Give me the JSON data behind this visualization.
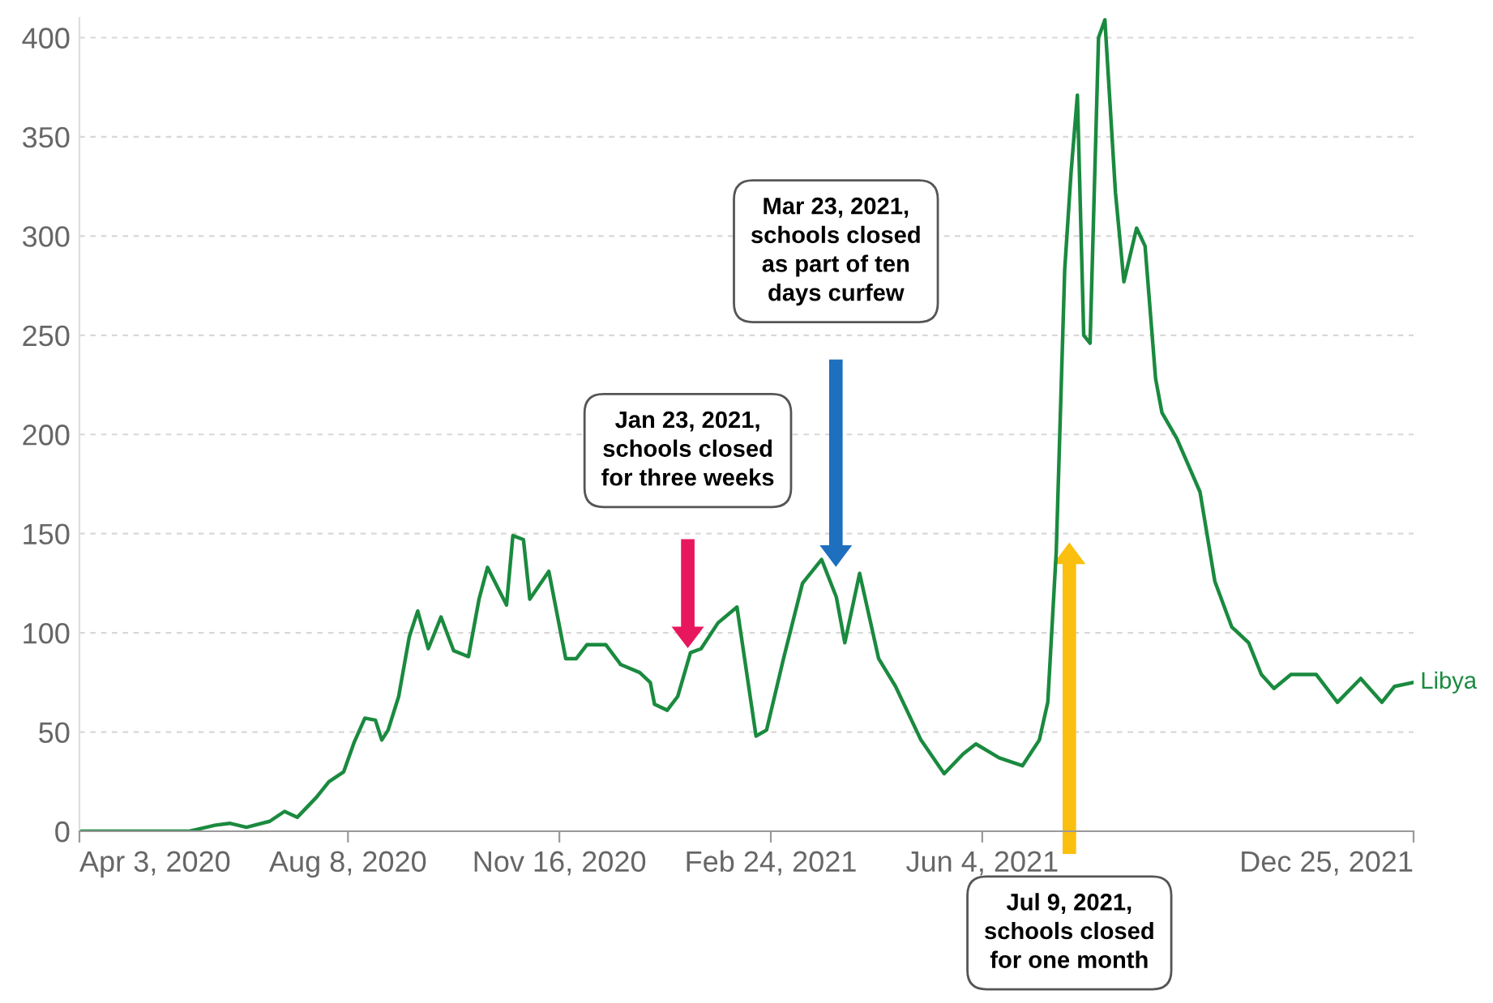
{
  "chart_data": {
    "type": "line",
    "series": [
      {
        "name": "Libya",
        "color": "#1a8a3f",
        "x": [
          "2020-04-03",
          "2020-05-25",
          "2020-06-06",
          "2020-06-13",
          "2020-06-21",
          "2020-07-02",
          "2020-07-09",
          "2020-07-15",
          "2020-07-24",
          "2020-07-30",
          "2020-08-06",
          "2020-08-11",
          "2020-08-16",
          "2020-08-21",
          "2020-08-24",
          "2020-08-27",
          "2020-09-01",
          "2020-09-06",
          "2020-09-10",
          "2020-09-15",
          "2020-09-21",
          "2020-09-27",
          "2020-10-04",
          "2020-10-09",
          "2020-10-13",
          "2020-10-22",
          "2020-10-25",
          "2020-10-30",
          "2020-11-02",
          "2020-11-11",
          "2020-11-19",
          "2020-11-24",
          "2020-11-29",
          "2020-12-08",
          "2020-12-15",
          "2020-12-24",
          "2020-12-29",
          "2020-12-31",
          "2021-01-06",
          "2021-01-11",
          "2021-01-17",
          "2021-01-22",
          "2021-01-30",
          "2021-02-08",
          "2021-02-17",
          "2021-02-22",
          "2021-03-02",
          "2021-03-11",
          "2021-03-20",
          "2021-03-27",
          "2021-03-31",
          "2021-04-07",
          "2021-04-16",
          "2021-04-24",
          "2021-05-06",
          "2021-05-17",
          "2021-05-26",
          "2021-06-01",
          "2021-06-12",
          "2021-06-23",
          "2021-07-01",
          "2021-07-05",
          "2021-07-09",
          "2021-07-13",
          "2021-07-16",
          "2021-07-19",
          "2021-07-22",
          "2021-07-25",
          "2021-07-29",
          "2021-08-01",
          "2021-08-06",
          "2021-08-10",
          "2021-08-16",
          "2021-08-20",
          "2021-08-25",
          "2021-08-28",
          "2021-09-04",
          "2021-09-15",
          "2021-09-22",
          "2021-09-30",
          "2021-10-08",
          "2021-10-14",
          "2021-10-20",
          "2021-10-28",
          "2021-11-09",
          "2021-11-19",
          "2021-11-30",
          "2021-12-10",
          "2021-12-16",
          "2021-12-25"
        ],
        "values": [
          0,
          0,
          3,
          4,
          2,
          5,
          10,
          7,
          17,
          25,
          30,
          45,
          57,
          56,
          46,
          51,
          68,
          98,
          111,
          92,
          108,
          91,
          88,
          117,
          133,
          114,
          149,
          147,
          117,
          131,
          87,
          87,
          94,
          94,
          84,
          80,
          75,
          64,
          61,
          68,
          90,
          92,
          105,
          113,
          48,
          51,
          87,
          125,
          137,
          118,
          95,
          130,
          87,
          73,
          46,
          29,
          39,
          44,
          37,
          33,
          46,
          65,
          141,
          283,
          332,
          371,
          250,
          246,
          400,
          409,
          322,
          277,
          304,
          295,
          228,
          211,
          198,
          171,
          126,
          103,
          95,
          79,
          72,
          79,
          79,
          65,
          77,
          65,
          73,
          75
        ]
      }
    ],
    "xlim": [
      "2020-04-03",
      "2021-12-25"
    ],
    "xticks": [
      {
        "value": "2020-04-03",
        "label": "Apr 3, 2020"
      },
      {
        "value": "2020-08-08",
        "label": "Aug 8, 2020"
      },
      {
        "value": "2020-11-16",
        "label": "Nov 16, 2020"
      },
      {
        "value": "2021-02-24",
        "label": "Feb 24, 2021"
      },
      {
        "value": "2021-06-04",
        "label": "Jun 4, 2021"
      },
      {
        "value": "2021-12-25",
        "label": "Dec 25, 2021"
      }
    ],
    "ylim": [
      0,
      410
    ],
    "yticks": [
      0,
      50,
      100,
      150,
      200,
      250,
      300,
      350,
      400
    ],
    "grid": "y",
    "legend": false,
    "line_style": "solid",
    "marker": "none",
    "annotations": [
      "Jan 23, 2021,\nschools closed\nfor three weeks",
      "Mar 23, 2021,\nschools closed\nas part of ten\ndays curfew",
      "Jul 9, 2021,\nschools closed\nfor one month"
    ]
  }
}
